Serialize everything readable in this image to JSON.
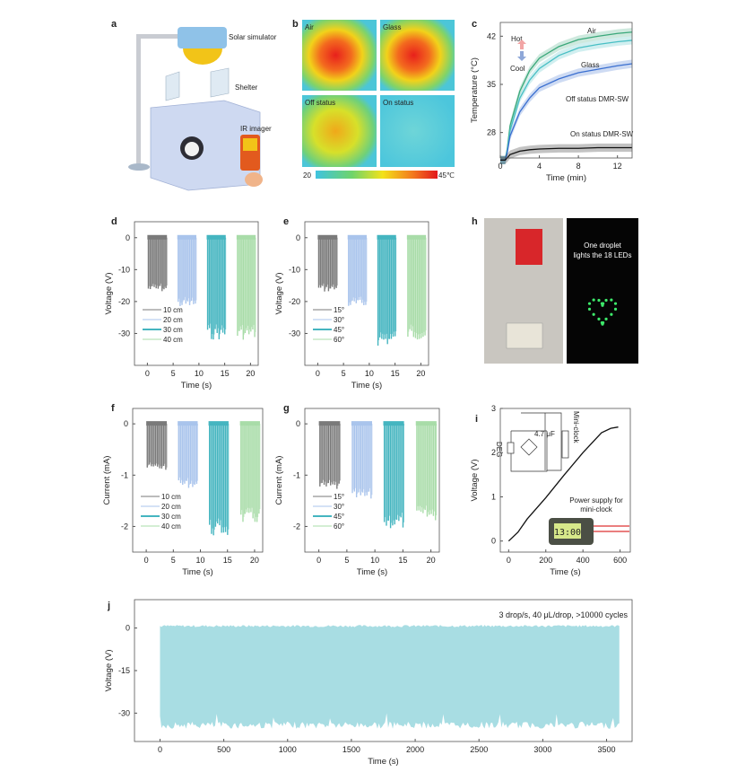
{
  "panel_labels": {
    "a": "a",
    "b": "b",
    "c": "c",
    "d": "d",
    "e": "e",
    "f": "f",
    "g": "g",
    "h": "h",
    "i": "i",
    "j": "j"
  },
  "panel_a": {
    "solar_simulator": "Solar simulator",
    "shelter": "Shelter",
    "ir_imager": "IR imager"
  },
  "panel_b": {
    "tiles": [
      "Air",
      "Glass",
      "Off status",
      "On status"
    ],
    "colorbar_min": "20",
    "colorbar_max": "45℃"
  },
  "panel_c_notes": {
    "hot": "Hot",
    "cool": "Cool"
  },
  "panel_h": {
    "caption": [
      "One droplet",
      "lights the 18 LEDs"
    ]
  },
  "panel_i_notes": {
    "capacitor": "4.7 μF",
    "deg": "DEG",
    "mini_clock": "Mini-clock",
    "power_supply": [
      "Power supply for",
      "mini-clock"
    ],
    "clock_display": "13:00"
  },
  "panel_j_note": "3 drop/s, 40 μL/drop, >10000 cycles",
  "chart_data": [
    {
      "id": "c",
      "type": "line",
      "xlabel": "Time (min)",
      "ylabel": "Temperature (°C)",
      "xlim": [
        0,
        13.5
      ],
      "ylim": [
        24.3,
        44
      ],
      "xticks": [
        "0",
        "4",
        "8",
        "12"
      ],
      "yticks": [
        "28",
        "35",
        "42"
      ],
      "x": [
        0,
        0.5,
        0.7,
        1,
        2,
        3,
        4,
        6,
        8,
        10,
        12,
        13.5
      ],
      "series": [
        {
          "name": "Air",
          "color": "#3aa87a",
          "values": [
            24,
            24,
            25.5,
            29,
            34,
            37,
            38.8,
            40.5,
            41.5,
            42,
            42.4,
            42.6
          ]
        },
        {
          "name": "Glass",
          "color": "#48bfc4",
          "values": [
            24,
            24,
            25.3,
            28.3,
            33,
            35.6,
            37.3,
            39.2,
            40.3,
            40.8,
            41.2,
            41.4
          ]
        },
        {
          "name": "Off status DMR-SW",
          "color": "#3a6fd0",
          "values": [
            24,
            24,
            25,
            27.5,
            31,
            33,
            34.5,
            35.8,
            36.7,
            37.2,
            37.7,
            38.0
          ]
        },
        {
          "name": "On status DMR-SW",
          "color": "#111111",
          "values": [
            24,
            24,
            24.3,
            24.8,
            25.3,
            25.5,
            25.6,
            25.7,
            25.7,
            25.8,
            25.8,
            25.8
          ]
        }
      ]
    },
    {
      "id": "d",
      "type": "pulses",
      "xlabel": "Time (s)",
      "ylabel": "Voltage (V)",
      "xlim": [
        -2.5,
        21.5
      ],
      "ylim": [
        -40,
        5
      ],
      "xticks": [
        "0",
        "5",
        "10",
        "15",
        "20"
      ],
      "yticks": [
        "0",
        "-10",
        "-20",
        "-30"
      ],
      "series": [
        {
          "name": "10 cm",
          "color": "#7a7a7a",
          "t": [
            0,
            3.8
          ],
          "peak": -17
        },
        {
          "name": "20 cm",
          "color": "#a9c4ec",
          "t": [
            5.8,
            9.5
          ],
          "peak": -22
        },
        {
          "name": "30 cm",
          "color": "#45b5c0",
          "t": [
            11.5,
            15.2
          ],
          "peak": -32
        },
        {
          "name": "40 cm",
          "color": "#a8dca8",
          "t": [
            17.3,
            21
          ],
          "peak": -32
        }
      ]
    },
    {
      "id": "e",
      "type": "pulses",
      "xlabel": "Time (s)",
      "ylabel": "Voltage (V)",
      "xlim": [
        -2.5,
        21.5
      ],
      "ylim": [
        -40,
        5
      ],
      "xticks": [
        "0",
        "5",
        "10",
        "15",
        "20"
      ],
      "yticks": [
        "0",
        "-10",
        "-20",
        "-30"
      ],
      "series": [
        {
          "name": "15°",
          "color": "#7a7a7a",
          "t": [
            0,
            3.8
          ],
          "peak": -17
        },
        {
          "name": "30°",
          "color": "#a9c4ec",
          "t": [
            5.8,
            9.5
          ],
          "peak": -22
        },
        {
          "name": "45°",
          "color": "#45b5c0",
          "t": [
            11.5,
            15.2
          ],
          "peak": -34
        },
        {
          "name": "60°",
          "color": "#a8dca8",
          "t": [
            17.3,
            21
          ],
          "peak": -32
        }
      ]
    },
    {
      "id": "f",
      "type": "pulses",
      "xlabel": "Time (s)",
      "ylabel": "Current (mA)",
      "xlim": [
        -2.5,
        21.5
      ],
      "ylim": [
        -2.5,
        0.3
      ],
      "xticks": [
        "0",
        "5",
        "10",
        "15",
        "20"
      ],
      "yticks": [
        "0",
        "-1",
        "-2"
      ],
      "series": [
        {
          "name": "10 cm",
          "color": "#7a7a7a",
          "t": [
            0,
            3.8
          ],
          "peak": -0.9
        },
        {
          "name": "20 cm",
          "color": "#a9c4ec",
          "t": [
            5.8,
            9.5
          ],
          "peak": -1.25
        },
        {
          "name": "30 cm",
          "color": "#45b5c0",
          "t": [
            11.5,
            15.2
          ],
          "peak": -2.2
        },
        {
          "name": "40 cm",
          "color": "#a8dca8",
          "t": [
            17.3,
            21
          ],
          "peak": -1.95
        }
      ]
    },
    {
      "id": "g",
      "type": "pulses",
      "xlabel": "Time (s)",
      "ylabel": "Current (mA)",
      "xlim": [
        -2.5,
        21.5
      ],
      "ylim": [
        -2.5,
        0.3
      ],
      "xticks": [
        "0",
        "5",
        "10",
        "15",
        "20"
      ],
      "yticks": [
        "0",
        "-1",
        "-2"
      ],
      "series": [
        {
          "name": "15°",
          "color": "#7a7a7a",
          "t": [
            0,
            3.8
          ],
          "peak": -1.3
        },
        {
          "name": "30°",
          "color": "#a9c4ec",
          "t": [
            5.8,
            9.5
          ],
          "peak": -1.5
        },
        {
          "name": "45°",
          "color": "#45b5c0",
          "t": [
            11.5,
            15.2
          ],
          "peak": -2.05
        },
        {
          "name": "60°",
          "color": "#a8dca8",
          "t": [
            17.3,
            21
          ],
          "peak": -1.9
        }
      ]
    },
    {
      "id": "i",
      "type": "line",
      "xlabel": "Time (s)",
      "ylabel": "Voltage (V)",
      "xlim": [
        -45,
        655
      ],
      "ylim": [
        -0.25,
        3
      ],
      "xticks": [
        "0",
        "200",
        "400",
        "600"
      ],
      "yticks": [
        "0",
        "1",
        "2",
        "3"
      ],
      "x": [
        0,
        50,
        100,
        200,
        300,
        400,
        500,
        550,
        590
      ],
      "series": [
        {
          "color": "#111111",
          "values": [
            0,
            0.2,
            0.5,
            0.98,
            1.5,
            2.0,
            2.45,
            2.55,
            2.58
          ]
        }
      ]
    },
    {
      "id": "j",
      "type": "pulses-dense",
      "xlabel": "Time (s)",
      "ylabel": "Voltage (V)",
      "xlim": [
        -200,
        3700
      ],
      "ylim": [
        -40,
        10
      ],
      "xticks": [
        "0",
        "500",
        "1000",
        "1500",
        "2000",
        "2500",
        "3000",
        "3500"
      ],
      "yticks": [
        "0",
        "-15",
        "-30"
      ],
      "series": [
        {
          "color": "#a8dde3",
          "t": [
            0,
            3600
          ],
          "peak": -33
        }
      ]
    }
  ]
}
